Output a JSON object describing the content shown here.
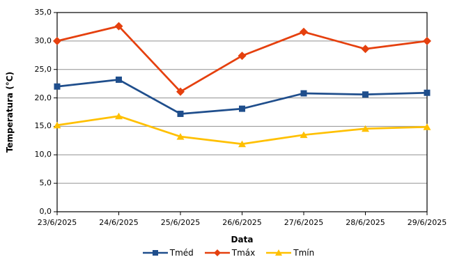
{
  "chart_data": {
    "type": "line",
    "title": "",
    "xlabel": "Data",
    "ylabel": "Temperatura (°C)",
    "ylim": [
      0,
      35
    ],
    "ytick_step": 5,
    "y_tick_labels": [
      "0,0",
      "5,0",
      "10,0",
      "15,0",
      "20,0",
      "25,0",
      "30,0",
      "35,0"
    ],
    "grid": true,
    "legend_position": "bottom",
    "categories": [
      "23/6/2025",
      "24/6/2025",
      "25/6/2025",
      "26/6/2025",
      "27/6/2025",
      "28/6/2025",
      "29/6/2025"
    ],
    "series": [
      {
        "name": "Tméd",
        "marker": "square",
        "color": "#1F4E8C",
        "values": [
          22.0,
          23.2,
          17.2,
          18.1,
          20.8,
          20.6,
          20.9
        ]
      },
      {
        "name": "Tmáx",
        "marker": "diamond",
        "color": "#E5400E",
        "values": [
          30.0,
          32.6,
          21.1,
          27.4,
          31.6,
          28.6,
          30.0
        ]
      },
      {
        "name": "Tmín",
        "marker": "triangle",
        "color": "#FFC000",
        "values": [
          15.2,
          16.8,
          13.2,
          11.9,
          13.5,
          14.6,
          14.9
        ]
      }
    ],
    "colors": {
      "axis": "#000000",
      "gridline": "#909090",
      "background": "#FFFFFF",
      "text": "#000000"
    }
  }
}
